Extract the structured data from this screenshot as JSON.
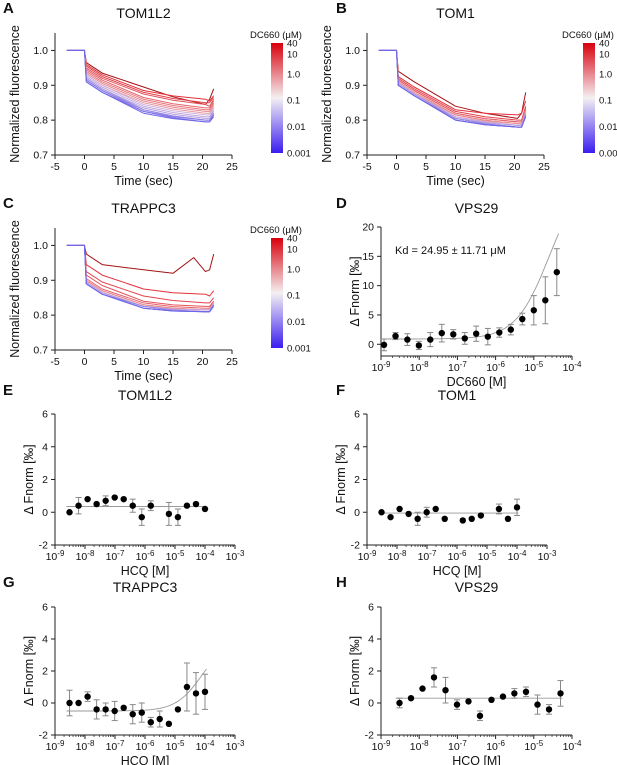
{
  "panel_labels": [
    "A",
    "B",
    "C",
    "D",
    "E",
    "F",
    "G",
    "H"
  ],
  "colorbar_title": "DC660 (μM)",
  "colorbar_ticks": [
    "40",
    "10",
    "1.0",
    "0.1",
    "0.01",
    "0.001"
  ],
  "kd_text": "Kd = 24.95 ± 11.71 μM",
  "chart_data": [
    {
      "panel": "A",
      "type": "line",
      "title": "TOM1L2",
      "xlabel": "Time (sec)",
      "ylabel": "Normalized fluorescence",
      "xlim": [
        -5,
        25
      ],
      "ylim": [
        0.7,
        1.05
      ],
      "xticks": [
        "-5",
        "0",
        "5",
        "10",
        "15",
        "20",
        "25"
      ],
      "yticks": [
        "0.7",
        "0.8",
        "0.9",
        "1.0"
      ],
      "legend": "colorbar-right",
      "concentrations_uM": [
        40,
        20,
        10,
        5,
        2.5,
        1.25,
        0.625,
        0.3125,
        0.156,
        0.078,
        0.039,
        0.0195,
        0.0098,
        0.0049,
        0.0024,
        0.0012
      ],
      "series": [
        {
          "ends": [
            0.935,
            0.895,
            0.845
          ],
          "tail": [
            0.86,
            0.89
          ]
        },
        {
          "ends": [
            0.93,
            0.885,
            0.86
          ],
          "tail": [
            0.855,
            0.87
          ]
        },
        {
          "ends": [
            0.925,
            0.88,
            0.85
          ],
          "tail": [
            0.85,
            0.865
          ]
        },
        {
          "ends": [
            0.92,
            0.875,
            0.845
          ],
          "tail": [
            0.84,
            0.86
          ]
        },
        {
          "ends": [
            0.915,
            0.865,
            0.835
          ],
          "tail": [
            0.835,
            0.855
          ]
        },
        {
          "ends": [
            0.91,
            0.86,
            0.83
          ],
          "tail": [
            0.83,
            0.85
          ]
        },
        {
          "ends": [
            0.905,
            0.855,
            0.825
          ],
          "tail": [
            0.825,
            0.845
          ]
        },
        {
          "ends": [
            0.9,
            0.85,
            0.82
          ],
          "tail": [
            0.82,
            0.84
          ]
        },
        {
          "ends": [
            0.9,
            0.845,
            0.815
          ],
          "tail": [
            0.815,
            0.835
          ]
        },
        {
          "ends": [
            0.895,
            0.84,
            0.81
          ],
          "tail": [
            0.81,
            0.83
          ]
        },
        {
          "ends": [
            0.89,
            0.835,
            0.805
          ],
          "tail": [
            0.805,
            0.825
          ]
        },
        {
          "ends": [
            0.89,
            0.83,
            0.8
          ],
          "tail": [
            0.8,
            0.82
          ]
        },
        {
          "ends": [
            0.885,
            0.83,
            0.8
          ],
          "tail": [
            0.8,
            0.82
          ]
        },
        {
          "ends": [
            0.885,
            0.825,
            0.8
          ],
          "tail": [
            0.8,
            0.815
          ]
        },
        {
          "ends": [
            0.88,
            0.825,
            0.795
          ],
          "tail": [
            0.795,
            0.815
          ]
        },
        {
          "ends": [
            0.88,
            0.82,
            0.795
          ],
          "tail": [
            0.795,
            0.81
          ]
        }
      ]
    },
    {
      "panel": "B",
      "type": "line",
      "title": "TOM1",
      "xlabel": "Time (sec)",
      "ylabel": "Normalized fluorescence",
      "xlim": [
        -5,
        25
      ],
      "ylim": [
        0.7,
        1.05
      ],
      "xticks": [
        "-5",
        "0",
        "5",
        "10",
        "15",
        "20",
        "25"
      ],
      "yticks": [
        "0.7",
        "0.8",
        "0.9",
        "1.0"
      ],
      "legend": "colorbar-right",
      "series": [
        {
          "ends": [
            0.91,
            0.84,
            0.805
          ],
          "tail": [
            0.82,
            0.88
          ]
        },
        {
          "ends": [
            0.895,
            0.83,
            0.815
          ],
          "tail": [
            0.82,
            0.855
          ]
        },
        {
          "ends": [
            0.89,
            0.825,
            0.8
          ],
          "tail": [
            0.8,
            0.84
          ]
        },
        {
          "ends": [
            0.885,
            0.82,
            0.795
          ],
          "tail": [
            0.795,
            0.835
          ]
        },
        {
          "ends": [
            0.885,
            0.82,
            0.795
          ],
          "tail": [
            0.795,
            0.83
          ]
        },
        {
          "ends": [
            0.88,
            0.815,
            0.79
          ],
          "tail": [
            0.79,
            0.83
          ]
        },
        {
          "ends": [
            0.88,
            0.815,
            0.79
          ],
          "tail": [
            0.79,
            0.825
          ]
        },
        {
          "ends": [
            0.88,
            0.81,
            0.79
          ],
          "tail": [
            0.79,
            0.825
          ]
        },
        {
          "ends": [
            0.875,
            0.81,
            0.785
          ],
          "tail": [
            0.785,
            0.82
          ]
        },
        {
          "ends": [
            0.875,
            0.81,
            0.785
          ],
          "tail": [
            0.785,
            0.82
          ]
        },
        {
          "ends": [
            0.875,
            0.805,
            0.785
          ],
          "tail": [
            0.785,
            0.82
          ]
        },
        {
          "ends": [
            0.875,
            0.805,
            0.78
          ],
          "tail": [
            0.78,
            0.815
          ]
        },
        {
          "ends": [
            0.87,
            0.805,
            0.78
          ],
          "tail": [
            0.78,
            0.815
          ]
        },
        {
          "ends": [
            0.87,
            0.8,
            0.78
          ],
          "tail": [
            0.78,
            0.815
          ]
        },
        {
          "ends": [
            0.87,
            0.8,
            0.78
          ],
          "tail": [
            0.78,
            0.81
          ]
        },
        {
          "ends": [
            0.87,
            0.8,
            0.78
          ],
          "tail": [
            0.78,
            0.81
          ]
        }
      ]
    },
    {
      "panel": "C",
      "type": "line",
      "title": "TRAPPC3",
      "xlabel": "Time (sec)",
      "ylabel": "Normalized fluorescence",
      "xlim": [
        -5,
        25
      ],
      "ylim": [
        0.7,
        1.05
      ],
      "xticks": [
        "-5",
        "0",
        "5",
        "10",
        "15",
        "20",
        "25"
      ],
      "yticks": [
        "0.7",
        "0.8",
        "0.9",
        "1.0"
      ],
      "legend": "colorbar-right",
      "series": [
        {
          "ends": [
            0.945,
            0.93,
            0.925
          ],
          "tail": [
            0.93,
            0.975
          ],
          "bump": true
        },
        {
          "ends": [
            0.915,
            0.875,
            0.86
          ],
          "tail": [
            0.855,
            0.87
          ]
        },
        {
          "ends": [
            0.895,
            0.855,
            0.835
          ],
          "tail": [
            0.835,
            0.85
          ]
        },
        {
          "ends": [
            0.885,
            0.84,
            0.825
          ],
          "tail": [
            0.825,
            0.84
          ]
        },
        {
          "ends": [
            0.875,
            0.835,
            0.82
          ],
          "tail": [
            0.82,
            0.84
          ]
        },
        {
          "ends": [
            0.87,
            0.83,
            0.815
          ],
          "tail": [
            0.815,
            0.835
          ]
        },
        {
          "ends": [
            0.87,
            0.83,
            0.815
          ],
          "tail": [
            0.815,
            0.835
          ]
        },
        {
          "ends": [
            0.865,
            0.825,
            0.815
          ],
          "tail": [
            0.815,
            0.835
          ]
        },
        {
          "ends": [
            0.865,
            0.825,
            0.815
          ],
          "tail": [
            0.815,
            0.835
          ]
        },
        {
          "ends": [
            0.865,
            0.825,
            0.815
          ],
          "tail": [
            0.815,
            0.83
          ]
        },
        {
          "ends": [
            0.865,
            0.825,
            0.81
          ],
          "tail": [
            0.81,
            0.83
          ]
        },
        {
          "ends": [
            0.86,
            0.825,
            0.81
          ],
          "tail": [
            0.81,
            0.83
          ]
        },
        {
          "ends": [
            0.86,
            0.825,
            0.81
          ],
          "tail": [
            0.81,
            0.83
          ]
        },
        {
          "ends": [
            0.86,
            0.82,
            0.81
          ],
          "tail": [
            0.81,
            0.83
          ]
        },
        {
          "ends": [
            0.86,
            0.82,
            0.81
          ],
          "tail": [
            0.81,
            0.83
          ]
        },
        {
          "ends": [
            0.86,
            0.82,
            0.81
          ],
          "tail": [
            0.81,
            0.825
          ]
        }
      ]
    },
    {
      "panel": "D",
      "type": "scatter",
      "title": "VPS29",
      "xlabel": "DC660 [M]",
      "ylabel": "Δ Fnorm [‰]",
      "xscale": "log",
      "xlim": [
        1e-09,
        0.0001
      ],
      "ylim": [
        -2,
        20
      ],
      "xtick_exps": [
        -9,
        -8,
        -7,
        -6,
        -5,
        -4
      ],
      "yticks": [
        "0",
        "5",
        "10",
        "15",
        "20"
      ],
      "fit": "binding-curve",
      "points": [
        {
          "x": 1.2e-09,
          "y": -0.1,
          "err": 1.0
        },
        {
          "x": 2.4e-09,
          "y": 1.4,
          "err": 0.6
        },
        {
          "x": 4.9e-09,
          "y": 0.8,
          "err": 1.0
        },
        {
          "x": 9.8e-09,
          "y": -0.2,
          "err": 0.7
        },
        {
          "x": 1.95e-08,
          "y": 0.8,
          "err": 1.2
        },
        {
          "x": 3.9e-08,
          "y": 1.9,
          "err": 1.5
        },
        {
          "x": 7.8e-08,
          "y": 1.7,
          "err": 0.8
        },
        {
          "x": 1.56e-07,
          "y": 1.0,
          "err": 1.0
        },
        {
          "x": 3.1e-07,
          "y": 1.8,
          "err": 1.3
        },
        {
          "x": 6.25e-07,
          "y": 1.3,
          "err": 1.4
        },
        {
          "x": 1.25e-06,
          "y": 2.0,
          "err": 0.8
        },
        {
          "x": 2.5e-06,
          "y": 2.5,
          "err": 0.9
        },
        {
          "x": 5e-06,
          "y": 4.3,
          "err": 1.0
        },
        {
          "x": 1e-05,
          "y": 5.8,
          "err": 2.5
        },
        {
          "x": 2e-05,
          "y": 7.5,
          "err": 4.0
        },
        {
          "x": 4e-05,
          "y": 12.3,
          "err": 4.0
        }
      ]
    },
    {
      "panel": "E",
      "type": "scatter",
      "title": "TOM1L2",
      "xlabel": "HCQ [M]",
      "ylabel": "Δ Fnorm [‰]",
      "xscale": "log",
      "xlim": [
        1e-09,
        0.001
      ],
      "ylim": [
        -2,
        6
      ],
      "xtick_exps": [
        -9,
        -8,
        -7,
        -6,
        -5,
        -4,
        -3
      ],
      "yticks": [
        "-2",
        "0",
        "2",
        "4",
        "6"
      ],
      "fit": "flat",
      "points": [
        {
          "x": 3.05e-09,
          "y": 0.0,
          "err": 0
        },
        {
          "x": 6.1e-09,
          "y": 0.4,
          "err": 0.5
        },
        {
          "x": 1.22e-08,
          "y": 0.8,
          "err": 0
        },
        {
          "x": 2.44e-08,
          "y": 0.5,
          "err": 0
        },
        {
          "x": 4.88e-08,
          "y": 0.7,
          "err": 0.3
        },
        {
          "x": 9.77e-08,
          "y": 0.9,
          "err": 0
        },
        {
          "x": 1.95e-07,
          "y": 0.8,
          "err": 0
        },
        {
          "x": 3.9e-07,
          "y": 0.4,
          "err": 0.4
        },
        {
          "x": 7.8e-07,
          "y": -0.3,
          "err": 0.5
        },
        {
          "x": 1.56e-06,
          "y": 0.4,
          "err": 0.3
        },
        {
          "x": 6.25e-06,
          "y": -0.1,
          "err": 0.7
        },
        {
          "x": 1.25e-05,
          "y": -0.3,
          "err": 0.5
        },
        {
          "x": 2.5e-05,
          "y": 0.4,
          "err": 0
        },
        {
          "x": 5e-05,
          "y": 0.5,
          "err": 0
        },
        {
          "x": 0.0001,
          "y": 0.2,
          "err": 0
        }
      ]
    },
    {
      "panel": "F",
      "type": "scatter",
      "title": "TOM1",
      "xlabel": "HCQ [M]",
      "ylabel": "Δ Fnorm [‰]",
      "xscale": "log",
      "xlim": [
        1e-09,
        0.001
      ],
      "ylim": [
        -2,
        6
      ],
      "xtick_exps": [
        -9,
        -8,
        -7,
        -6,
        -5,
        -4,
        -3
      ],
      "yticks": [
        "-2",
        "0",
        "2",
        "4",
        "6"
      ],
      "fit": "flat",
      "points": [
        {
          "x": 3.05e-09,
          "y": 0.0,
          "err": 0
        },
        {
          "x": 6.1e-09,
          "y": -0.3,
          "err": 0
        },
        {
          "x": 1.22e-08,
          "y": 0.2,
          "err": 0
        },
        {
          "x": 2.44e-08,
          "y": -0.1,
          "err": 0
        },
        {
          "x": 4.88e-08,
          "y": -0.4,
          "err": 0.4
        },
        {
          "x": 9.77e-08,
          "y": 0.0,
          "err": 0.3
        },
        {
          "x": 1.95e-07,
          "y": 0.2,
          "err": 0
        },
        {
          "x": 3.9e-07,
          "y": -0.4,
          "err": 0
        },
        {
          "x": 1.56e-06,
          "y": -0.5,
          "err": 0
        },
        {
          "x": 3.1e-06,
          "y": -0.4,
          "err": 0
        },
        {
          "x": 6.25e-06,
          "y": -0.2,
          "err": 0
        },
        {
          "x": 2.5e-05,
          "y": 0.2,
          "err": 0.3
        },
        {
          "x": 5e-05,
          "y": -0.4,
          "err": 0
        },
        {
          "x": 0.0001,
          "y": 0.3,
          "err": 0.5
        }
      ]
    },
    {
      "panel": "G",
      "type": "scatter",
      "title": "TRAPPC3",
      "xlabel": "HCQ [M]",
      "ylabel": "Δ Fnorm [‰]",
      "xscale": "log",
      "xlim": [
        1e-09,
        0.001
      ],
      "ylim": [
        -2,
        6
      ],
      "xtick_exps": [
        -9,
        -8,
        -7,
        -6,
        -5,
        -4,
        -3
      ],
      "yticks": [
        "-2",
        "0",
        "2",
        "4",
        "6"
      ],
      "fit": "binding-curve",
      "points": [
        {
          "x": 3.05e-09,
          "y": 0.0,
          "err": 0.8
        },
        {
          "x": 6.1e-09,
          "y": 0.0,
          "err": 0
        },
        {
          "x": 1.22e-08,
          "y": 0.4,
          "err": 0.3
        },
        {
          "x": 2.44e-08,
          "y": -0.4,
          "err": 0.6
        },
        {
          "x": 4.88e-08,
          "y": -0.4,
          "err": 0.4
        },
        {
          "x": 9.77e-08,
          "y": -0.5,
          "err": 0.6
        },
        {
          "x": 1.95e-07,
          "y": -0.3,
          "err": 0
        },
        {
          "x": 3.9e-07,
          "y": -0.7,
          "err": 0.6
        },
        {
          "x": 7.8e-07,
          "y": -0.6,
          "err": 0.6
        },
        {
          "x": 1.56e-06,
          "y": -1.2,
          "err": 0.3
        },
        {
          "x": 3.1e-06,
          "y": -1.0,
          "err": 0.5
        },
        {
          "x": 6.25e-06,
          "y": -1.3,
          "err": 0
        },
        {
          "x": 1.25e-05,
          "y": -0.4,
          "err": 0
        },
        {
          "x": 2.5e-05,
          "y": 1.0,
          "err": 1.5
        },
        {
          "x": 5e-05,
          "y": 0.6,
          "err": 1.3
        },
        {
          "x": 0.0001,
          "y": 0.7,
          "err": 1.1
        }
      ]
    },
    {
      "panel": "H",
      "type": "scatter",
      "title": "VPS29",
      "xlabel": "HCQ [M]",
      "ylabel": "Δ Fnorm [‰]",
      "xscale": "log",
      "xlim": [
        1e-09,
        0.0001
      ],
      "ylim": [
        -2,
        6
      ],
      "xtick_exps": [
        -9,
        -8,
        -7,
        -6,
        -5,
        -4
      ],
      "yticks": [
        "-2",
        "0",
        "2",
        "4",
        "6"
      ],
      "fit": "flat",
      "points": [
        {
          "x": 3.05e-09,
          "y": 0.0,
          "err": 0.3
        },
        {
          "x": 6.1e-09,
          "y": 0.3,
          "err": 0
        },
        {
          "x": 1.22e-08,
          "y": 0.9,
          "err": 0
        },
        {
          "x": 2.44e-08,
          "y": 1.6,
          "err": 0.6
        },
        {
          "x": 4.88e-08,
          "y": 0.8,
          "err": 0.8
        },
        {
          "x": 9.77e-08,
          "y": -0.1,
          "err": 0.3
        },
        {
          "x": 1.95e-07,
          "y": 0.1,
          "err": 0
        },
        {
          "x": 3.9e-07,
          "y": -0.8,
          "err": 0.3
        },
        {
          "x": 7.8e-07,
          "y": 0.2,
          "err": 0
        },
        {
          "x": 1.56e-06,
          "y": 0.4,
          "err": 0
        },
        {
          "x": 3.1e-06,
          "y": 0.6,
          "err": 0.3
        },
        {
          "x": 6.25e-06,
          "y": 0.7,
          "err": 0.3
        },
        {
          "x": 1.25e-05,
          "y": -0.1,
          "err": 0.6
        },
        {
          "x": 2.5e-05,
          "y": -0.4,
          "err": 0.3
        },
        {
          "x": 5e-05,
          "y": 0.6,
          "err": 0.8
        }
      ]
    }
  ]
}
